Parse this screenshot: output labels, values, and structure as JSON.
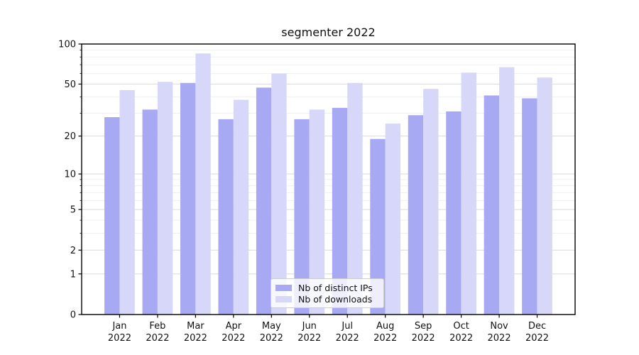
{
  "chart_data": {
    "type": "bar",
    "title": "segmenter 2022",
    "categories": [
      "Jan 2022",
      "Feb 2022",
      "Mar 2022",
      "Apr 2022",
      "May 2022",
      "Jun 2022",
      "Jul 2022",
      "Aug 2022",
      "Sep 2022",
      "Oct 2022",
      "Nov 2022",
      "Dec 2022"
    ],
    "month_labels": [
      "Jan",
      "Feb",
      "Mar",
      "Apr",
      "May",
      "Jun",
      "Jul",
      "Aug",
      "Sep",
      "Oct",
      "Nov",
      "Dec"
    ],
    "year_label": "2022",
    "series": [
      {
        "name": "Nb of distinct IPs",
        "color": "#a8a9f3",
        "values": [
          28,
          32,
          51,
          27,
          47,
          27,
          33,
          19,
          29,
          31,
          41,
          39
        ]
      },
      {
        "name": "Nb of downloads",
        "color": "#d7d8f9",
        "values": [
          45,
          52,
          85,
          38,
          60,
          32,
          51,
          25,
          46,
          61,
          67,
          56
        ]
      }
    ],
    "yscale": "symlog",
    "ylim": [
      0,
      100
    ],
    "ytick_labels": [
      "100",
      "50",
      "20",
      "10",
      "5",
      "2",
      "1",
      "0"
    ],
    "yticks_major": [
      100,
      50,
      20,
      10,
      5,
      2,
      1,
      0
    ],
    "yticks_minor": [
      3,
      4,
      6,
      7,
      8,
      9,
      30,
      40,
      60,
      70,
      80,
      90
    ],
    "grid": "horizontal major+minor",
    "legend_position": "lower center inside axes",
    "colors": {
      "major_grid": "#d9d9d9",
      "minor_grid": "#efefef",
      "spine": "#000000",
      "text": "#111111"
    }
  }
}
